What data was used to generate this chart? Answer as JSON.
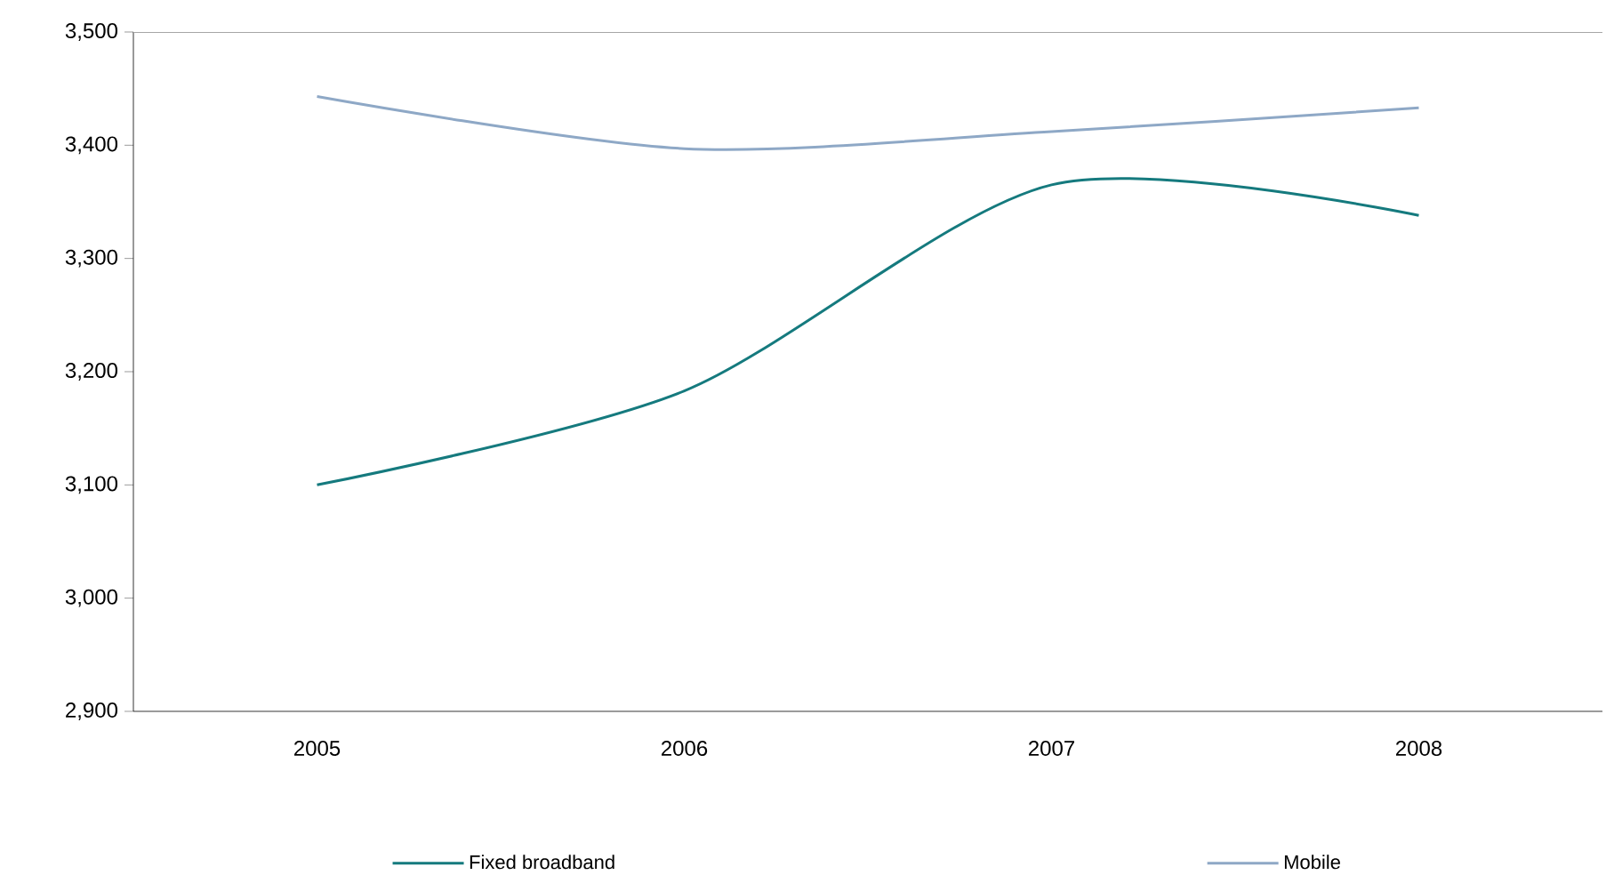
{
  "chart_data": {
    "type": "line",
    "categories": [
      "2005",
      "2006",
      "2007",
      "2008"
    ],
    "series": [
      {
        "name": "Fixed broadband",
        "color": "#157a7e",
        "values": [
          3100,
          3183,
          3365,
          3338
        ]
      },
      {
        "name": "Mobile",
        "color": "#8ea8c6",
        "values": [
          3443,
          3397,
          3412,
          3433
        ]
      }
    ],
    "ylim": [
      2900,
      3500
    ],
    "yticks": [
      {
        "value": 2900,
        "label": "2,900"
      },
      {
        "value": 3000,
        "label": "3,000"
      },
      {
        "value": 3100,
        "label": "3,100"
      },
      {
        "value": 3200,
        "label": "3,200"
      },
      {
        "value": 3300,
        "label": "3,300"
      },
      {
        "value": 3400,
        "label": "3,400"
      },
      {
        "value": 3500,
        "label": "3,500"
      }
    ],
    "grid": false,
    "legend": "bottom",
    "marker": "none",
    "line_style": "solid"
  }
}
